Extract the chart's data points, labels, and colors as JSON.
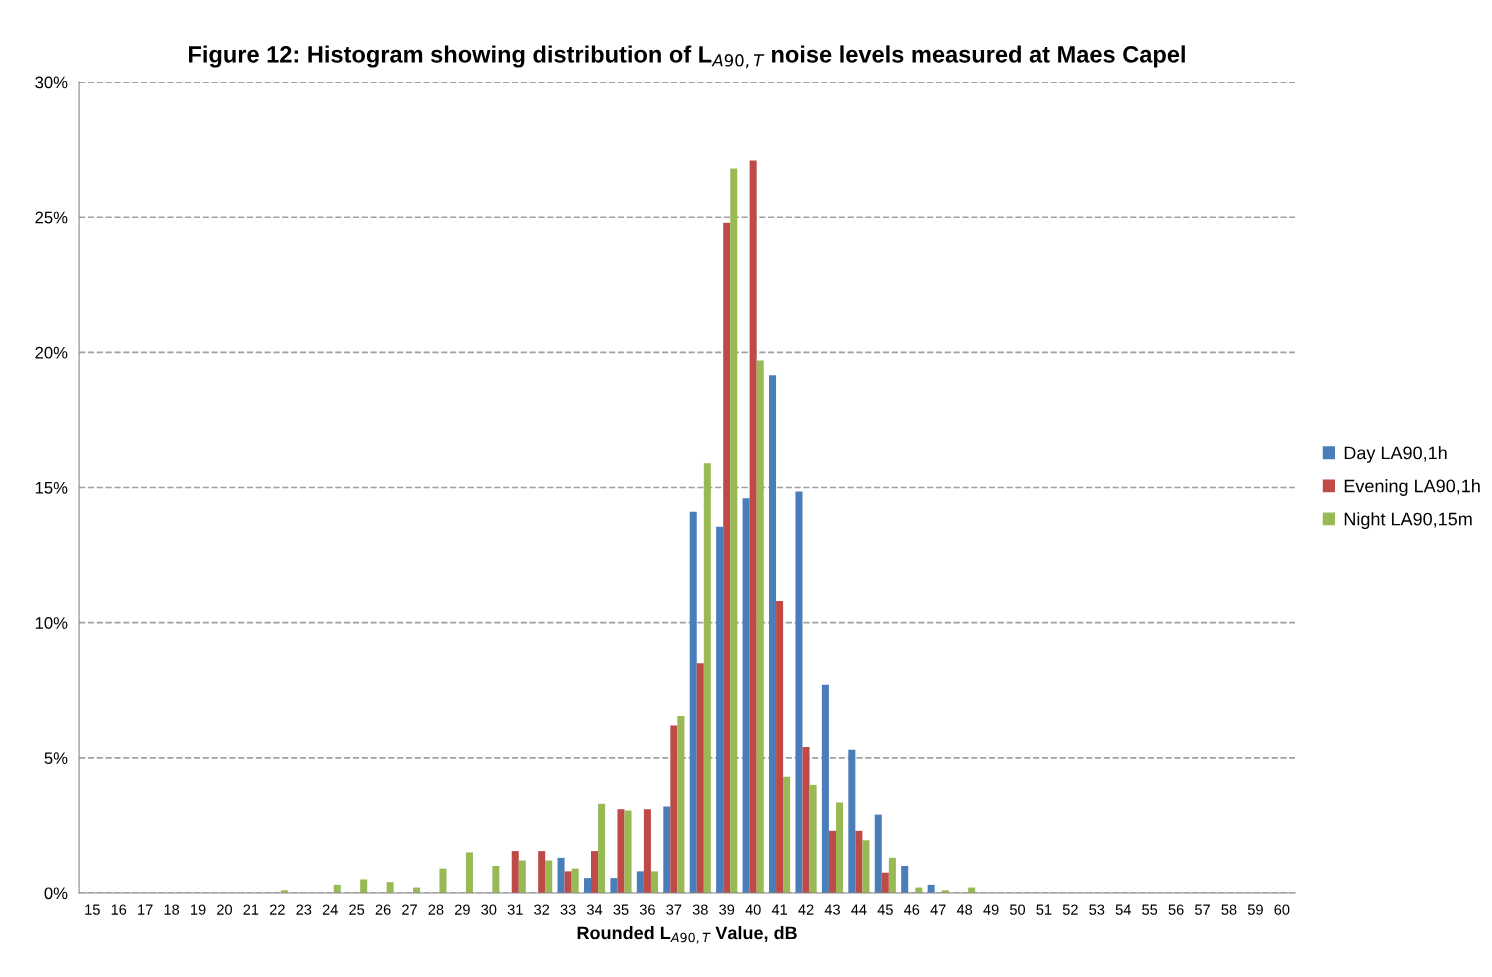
{
  "chart_data": {
    "type": "bar",
    "title": "Figure 12: Histogram showing distribution of L$_{A90,T}$ noise levels measured at Maes Capel",
    "xlabel": "Rounded L$_{A90,T}$ Value, dB",
    "categories": [
      "15",
      "16",
      "17",
      "18",
      "19",
      "20",
      "21",
      "22",
      "23",
      "24",
      "25",
      "26",
      "27",
      "28",
      "29",
      "30",
      "31",
      "32",
      "33",
      "34",
      "35",
      "36",
      "37",
      "38",
      "39",
      "40",
      "41",
      "42",
      "43",
      "44",
      "45",
      "46",
      "47",
      "48",
      "49",
      "50",
      "51",
      "52",
      "53",
      "54",
      "55",
      "56",
      "57",
      "58",
      "59",
      "60"
    ],
    "series": [
      {
        "name": "Day LA90,1h",
        "color": "#4a7ebb",
        "values": [
          0,
          0,
          0,
          0,
          0,
          0,
          0,
          0,
          0,
          0,
          0,
          0,
          0,
          0,
          0,
          0,
          0,
          0,
          1.3,
          0.55,
          0.55,
          0.8,
          3.2,
          14.1,
          13.55,
          14.6,
          19.15,
          14.85,
          7.7,
          5.3,
          2.9,
          1.0,
          0.3,
          0,
          0,
          0,
          0,
          0,
          0,
          0,
          0,
          0,
          0,
          0,
          0,
          0
        ]
      },
      {
        "name": "Evening LA90,1h",
        "color": "#be4b48",
        "values": [
          0,
          0,
          0,
          0,
          0,
          0,
          0,
          0,
          0,
          0,
          0,
          0,
          0,
          0,
          0,
          0,
          1.55,
          1.55,
          0.8,
          1.55,
          3.1,
          3.1,
          6.2,
          8.5,
          24.8,
          27.1,
          10.8,
          5.4,
          2.3,
          2.3,
          0.75,
          0,
          0,
          0,
          0,
          0,
          0,
          0,
          0,
          0,
          0,
          0,
          0,
          0,
          0,
          0
        ]
      },
      {
        "name": "Night LA90,15m",
        "color": "#98b954",
        "values": [
          0,
          0,
          0,
          0,
          0,
          0,
          0,
          0.1,
          0,
          0.3,
          0.5,
          0.4,
          0.2,
          0.9,
          1.5,
          1.0,
          1.2,
          1.2,
          0.9,
          3.3,
          3.05,
          0.8,
          6.55,
          15.9,
          26.8,
          19.7,
          4.3,
          4.0,
          3.35,
          1.95,
          1.3,
          0.2,
          0.1,
          0.2,
          0,
          0,
          0,
          0,
          0,
          0,
          0,
          0,
          0,
          0,
          0,
          0
        ]
      }
    ],
    "ylim": [
      0,
      30
    ],
    "yticks": [
      {
        "value": 0,
        "label": "0%"
      },
      {
        "value": 5,
        "label": "5%"
      },
      {
        "value": 10,
        "label": "10%"
      },
      {
        "value": 15,
        "label": "15%"
      },
      {
        "value": 20,
        "label": "20%"
      },
      {
        "value": 25,
        "label": "25%"
      },
      {
        "value": 30,
        "label": "30%"
      }
    ],
    "grid": "y",
    "line_style": "dashed",
    "legend": "right"
  }
}
